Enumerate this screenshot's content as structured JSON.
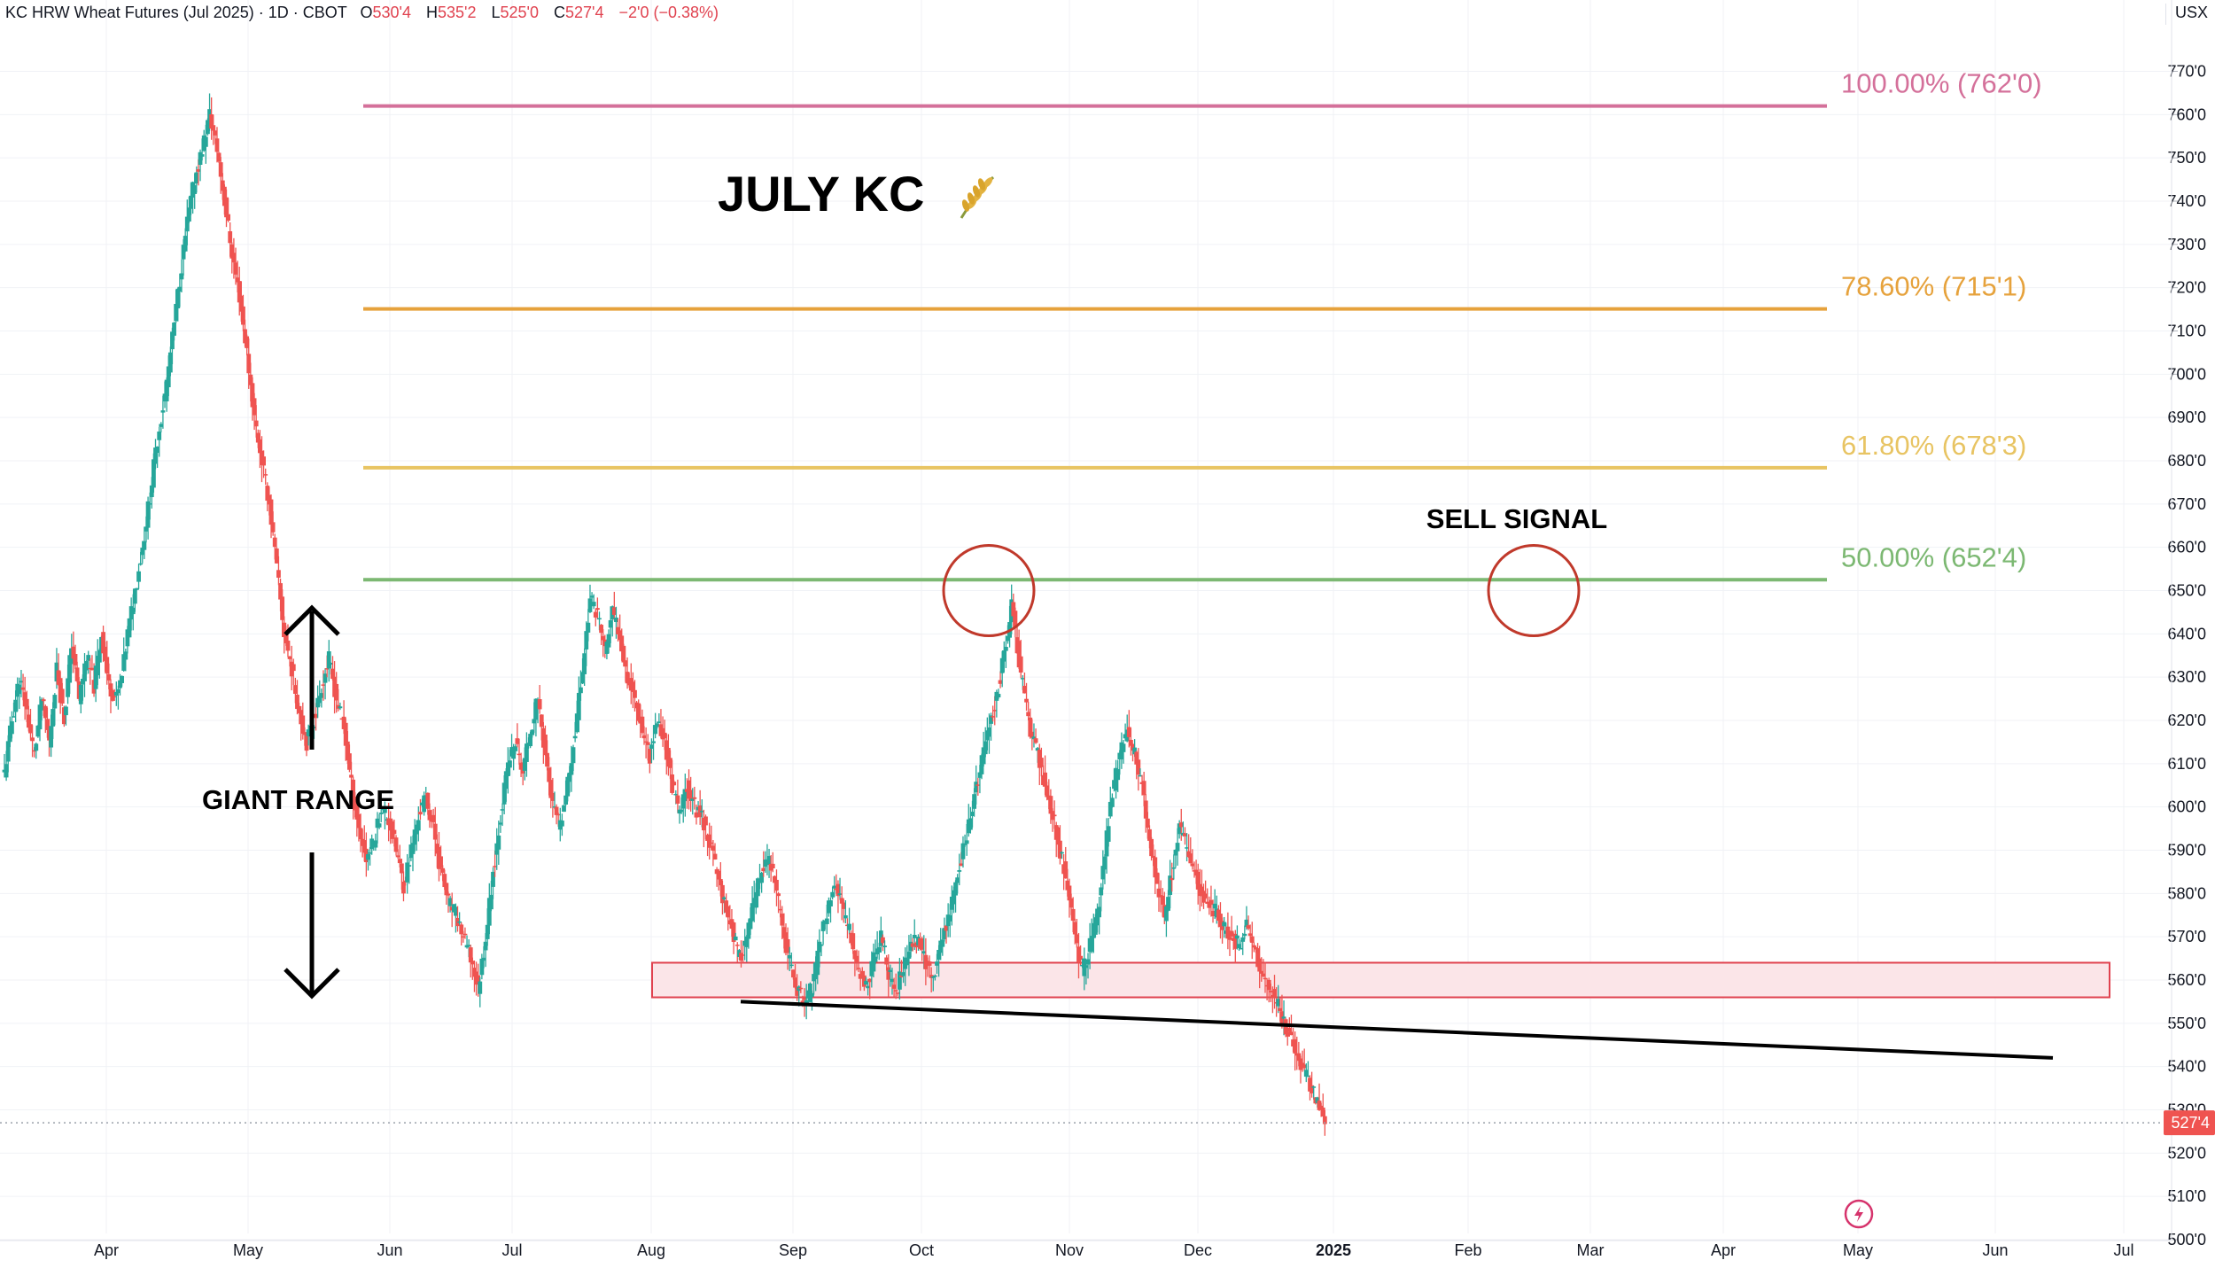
{
  "header": {
    "symbol": "KC HRW Wheat Futures (Jul 2025) · 1D · CBOT",
    "open_label": "O",
    "open_value": "530'4",
    "high_label": "H",
    "high_value": "535'2",
    "low_label": "L",
    "low_value": "525'0",
    "close_label": "C",
    "close_value": "527'4",
    "change": "−2'0 (−0.38%)",
    "currency": "USX"
  },
  "annotations": {
    "title": "JULY KC",
    "sell_signal": "SELL SIGNAL",
    "giant_range": "GIANT RANGE"
  },
  "colors": {
    "up_candle": "#26a69a",
    "down_candle": "#ef5350",
    "fib_100": "#d4709a",
    "fib_786": "#e6a23c",
    "fib_618": "#e8c463",
    "fib_50": "#7cb872",
    "support_zone_fill": "#fbe5e8",
    "support_zone_border": "#e0424f",
    "circle": "#c0392b",
    "price_badge": "#ef5350"
  },
  "chart_data": {
    "type": "candlestick",
    "y_axis": {
      "range": [
        500,
        770
      ],
      "ticks": [
        "500'0",
        "510'0",
        "520'0",
        "530'0",
        "540'0",
        "550'0",
        "560'0",
        "570'0",
        "580'0",
        "590'0",
        "600'0",
        "610'0",
        "620'0",
        "630'0",
        "640'0",
        "650'0",
        "660'0",
        "670'0",
        "680'0",
        "690'0",
        "700'0",
        "710'0",
        "720'0",
        "730'0",
        "740'0",
        "750'0",
        "760'0",
        "770'0"
      ]
    },
    "x_axis": {
      "ticks": [
        "Apr",
        "May",
        "Jun",
        "Jul",
        "Aug",
        "Sep",
        "Oct",
        "Nov",
        "Dec",
        "2025",
        "Feb",
        "Mar",
        "Apr",
        "May",
        "Jun",
        "Jul"
      ],
      "bold_tick": "2025"
    },
    "last_price": "527'4",
    "fib_levels": [
      {
        "label": "100.00% (762'0)",
        "value": 762.0,
        "color_key": "fib_100"
      },
      {
        "label": "78.60% (715'1)",
        "value": 715.1,
        "color_key": "fib_786"
      },
      {
        "label": "61.80% (678'3)",
        "value": 678.4,
        "color_key": "fib_618"
      },
      {
        "label": "50.00% (652'4)",
        "value": 652.5,
        "color_key": "fib_50"
      }
    ],
    "support_zone": {
      "low": 556,
      "high": 564
    },
    "trendline": {
      "start": 555,
      "end": 542
    },
    "circles_at": [
      650,
      650
    ],
    "path_points": [
      [
        0,
        608
      ],
      [
        4,
        620
      ],
      [
        8,
        630
      ],
      [
        12,
        622
      ],
      [
        16,
        612
      ],
      [
        20,
        625
      ],
      [
        24,
        615
      ],
      [
        28,
        632
      ],
      [
        32,
        620
      ],
      [
        36,
        638
      ],
      [
        40,
        625
      ],
      [
        44,
        635
      ],
      [
        48,
        628
      ],
      [
        52,
        640
      ],
      [
        56,
        628
      ],
      [
        60,
        625
      ],
      [
        63,
        630
      ],
      [
        66,
        640
      ],
      [
        70,
        650
      ],
      [
        74,
        660
      ],
      [
        78,
        672
      ],
      [
        82,
        685
      ],
      [
        86,
        695
      ],
      [
        90,
        708
      ],
      [
        94,
        722
      ],
      [
        98,
        735
      ],
      [
        102,
        745
      ],
      [
        106,
        752
      ],
      [
        110,
        760
      ],
      [
        114,
        752
      ],
      [
        118,
        740
      ],
      [
        122,
        728
      ],
      [
        126,
        718
      ],
      [
        130,
        705
      ],
      [
        134,
        690
      ],
      [
        138,
        680
      ],
      [
        142,
        670
      ],
      [
        146,
        655
      ],
      [
        150,
        640
      ],
      [
        154,
        632
      ],
      [
        158,
        622
      ],
      [
        162,
        615
      ],
      [
        166,
        620
      ],
      [
        170,
        628
      ],
      [
        174,
        634
      ],
      [
        178,
        625
      ],
      [
        182,
        618
      ],
      [
        186,
        605
      ],
      [
        190,
        595
      ],
      [
        194,
        588
      ],
      [
        198,
        592
      ],
      [
        202,
        600
      ],
      [
        206,
        597
      ],
      [
        210,
        590
      ],
      [
        214,
        582
      ],
      [
        218,
        590
      ],
      [
        222,
        598
      ],
      [
        226,
        602
      ],
      [
        230,
        595
      ],
      [
        234,
        585
      ],
      [
        238,
        578
      ],
      [
        242,
        575
      ],
      [
        246,
        570
      ],
      [
        250,
        565
      ],
      [
        254,
        558
      ],
      [
        258,
        570
      ],
      [
        262,
        585
      ],
      [
        266,
        598
      ],
      [
        270,
        610
      ],
      [
        274,
        615
      ],
      [
        278,
        608
      ],
      [
        282,
        618
      ],
      [
        286,
        625
      ],
      [
        290,
        612
      ],
      [
        294,
        600
      ],
      [
        298,
        595
      ],
      [
        302,
        605
      ],
      [
        306,
        618
      ],
      [
        310,
        632
      ],
      [
        314,
        648
      ],
      [
        318,
        645
      ],
      [
        322,
        636
      ],
      [
        326,
        645
      ],
      [
        330,
        640
      ],
      [
        334,
        630
      ],
      [
        338,
        625
      ],
      [
        342,
        618
      ],
      [
        346,
        612
      ],
      [
        350,
        620
      ],
      [
        354,
        615
      ],
      [
        358,
        605
      ],
      [
        362,
        598
      ],
      [
        366,
        605
      ],
      [
        370,
        600
      ],
      [
        374,
        598
      ],
      [
        378,
        592
      ],
      [
        382,
        585
      ],
      [
        386,
        578
      ],
      [
        390,
        572
      ],
      [
        394,
        565
      ],
      [
        398,
        570
      ],
      [
        402,
        578
      ],
      [
        406,
        585
      ],
      [
        410,
        588
      ],
      [
        414,
        580
      ],
      [
        418,
        570
      ],
      [
        422,
        562
      ],
      [
        426,
        557
      ],
      [
        430,
        555
      ],
      [
        434,
        560
      ],
      [
        438,
        570
      ],
      [
        442,
        578
      ],
      [
        446,
        582
      ],
      [
        450,
        575
      ],
      [
        454,
        570
      ],
      [
        458,
        562
      ],
      [
        462,
        558
      ],
      [
        466,
        565
      ],
      [
        470,
        570
      ],
      [
        474,
        562
      ],
      [
        478,
        558
      ],
      [
        482,
        562
      ],
      [
        486,
        568
      ],
      [
        490,
        570
      ],
      [
        494,
        564
      ],
      [
        498,
        560
      ],
      [
        502,
        568
      ],
      [
        506,
        575
      ],
      [
        510,
        582
      ],
      [
        514,
        590
      ],
      [
        518,
        598
      ],
      [
        522,
        606
      ],
      [
        526,
        615
      ],
      [
        530,
        622
      ],
      [
        534,
        630
      ],
      [
        538,
        640
      ],
      [
        540,
        648
      ],
      [
        542,
        640
      ],
      [
        546,
        628
      ],
      [
        550,
        618
      ],
      [
        554,
        612
      ],
      [
        558,
        605
      ],
      [
        562,
        598
      ],
      [
        566,
        590
      ],
      [
        570,
        582
      ],
      [
        574,
        570
      ],
      [
        578,
        562
      ],
      [
        582,
        568
      ],
      [
        586,
        575
      ],
      [
        590,
        590
      ],
      [
        594,
        603
      ],
      [
        598,
        612
      ],
      [
        602,
        618
      ],
      [
        606,
        612
      ],
      [
        610,
        605
      ],
      [
        614,
        592
      ],
      [
        618,
        582
      ],
      [
        622,
        575
      ],
      [
        626,
        585
      ],
      [
        630,
        595
      ],
      [
        634,
        590
      ],
      [
        638,
        585
      ],
      [
        642,
        580
      ],
      [
        646,
        578
      ],
      [
        650,
        575
      ],
      [
        654,
        572
      ],
      [
        658,
        570
      ],
      [
        662,
        568
      ],
      [
        666,
        572
      ],
      [
        670,
        568
      ],
      [
        674,
        562
      ],
      [
        678,
        558
      ],
      [
        682,
        555
      ],
      [
        686,
        550
      ],
      [
        690,
        546
      ],
      [
        694,
        542
      ],
      [
        698,
        538
      ],
      [
        702,
        534
      ],
      [
        705,
        530
      ],
      [
        708,
        527.5
      ]
    ]
  }
}
